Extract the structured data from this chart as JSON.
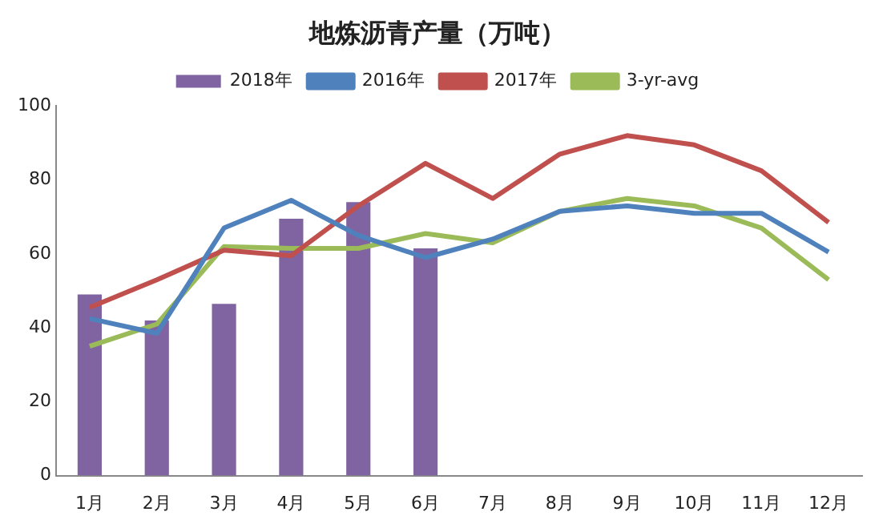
{
  "chart_data": {
    "type": "bar",
    "title": "地炼沥青产量（万吨）",
    "categories": [
      "1月",
      "2月",
      "3月",
      "4月",
      "5月",
      "6月",
      "7月",
      "8月",
      "9月",
      "10月",
      "11月",
      "12月"
    ],
    "series": [
      {
        "name": "2018年",
        "color": "#8064a2",
        "values": [
          49,
          42,
          46.5,
          69.5,
          74,
          61.5,
          null,
          null,
          null,
          null,
          null,
          null
        ]
      },
      {
        "name": "2016年",
        "type": "line",
        "color": "#4f81bd",
        "values": [
          42.5,
          38.5,
          67,
          74.5,
          65,
          59,
          64,
          71.5,
          73,
          71,
          71,
          60.5
        ]
      },
      {
        "name": "2017年",
        "type": "line",
        "color": "#c0504d",
        "values": [
          45.5,
          53,
          61,
          59.5,
          73,
          84.5,
          75,
          87,
          92,
          89.5,
          82.5,
          68.5
        ]
      },
      {
        "name": "3-yr-avg",
        "type": "line",
        "color": "#9bbb59",
        "values": [
          35,
          41,
          62,
          61.5,
          61.5,
          65.5,
          63,
          71.5,
          75,
          73,
          67,
          53
        ]
      }
    ],
    "ylim": [
      0,
      100
    ],
    "yticks": [
      0,
      20,
      40,
      60,
      80,
      100
    ],
    "legend": "top",
    "marker": "none"
  }
}
